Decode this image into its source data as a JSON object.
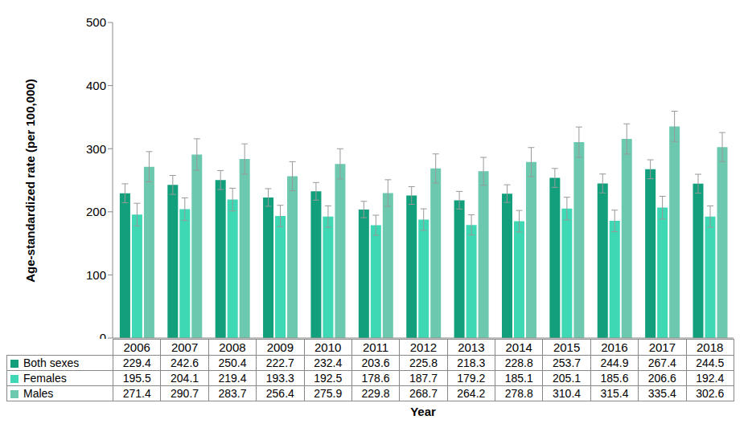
{
  "chart_data": {
    "type": "bar",
    "xlabel": "Year",
    "ylabel": "Age-standardized rate (per 100,000)",
    "categories": [
      "2006",
      "2007",
      "2008",
      "2009",
      "2010",
      "2011",
      "2012",
      "2013",
      "2014",
      "2015",
      "2016",
      "2017",
      "2018"
    ],
    "series": [
      {
        "name": "Both sexes",
        "color": "#12a07c",
        "values": [
          229.4,
          242.6,
          250.4,
          222.7,
          232.4,
          203.6,
          225.8,
          218.3,
          228.8,
          253.7,
          244.9,
          267.4,
          244.5
        ],
        "errors": [
          15,
          15,
          15,
          14,
          14,
          13,
          14,
          14,
          14,
          15,
          15,
          15,
          15
        ]
      },
      {
        "name": "Females",
        "color": "#3fd8b4",
        "values": [
          195.5,
          204.1,
          219.4,
          193.3,
          192.5,
          178.6,
          187.7,
          179.2,
          185.1,
          205.1,
          185.6,
          206.6,
          192.4
        ],
        "errors": [
          18,
          18,
          18,
          17,
          17,
          16,
          17,
          16,
          17,
          18,
          17,
          18,
          17
        ]
      },
      {
        "name": "Males",
        "color": "#6cc9b0",
        "values": [
          271.4,
          290.7,
          283.7,
          256.4,
          275.9,
          229.8,
          268.7,
          264.2,
          278.8,
          310.4,
          315.4,
          335.4,
          302.6
        ],
        "errors": [
          24,
          25,
          24,
          23,
          24,
          21,
          23,
          22,
          23,
          24,
          24,
          24,
          23
        ]
      }
    ],
    "ylim": [
      0,
      500
    ],
    "yticks": [
      0,
      100,
      200,
      300,
      400,
      500
    ],
    "grid": false,
    "data_table": true
  }
}
